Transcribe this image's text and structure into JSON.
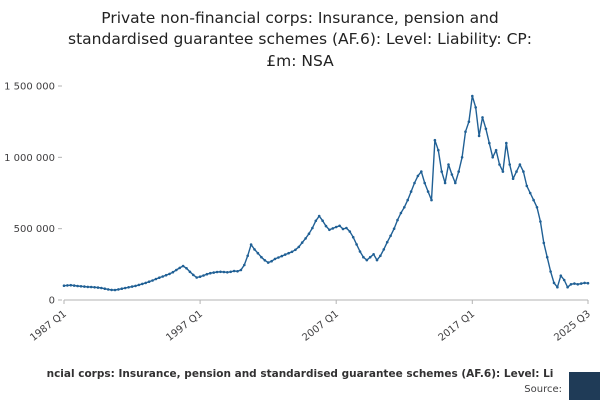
{
  "page": {
    "title_lines": [
      "Private non-financial corps: Insurance, pension and",
      "standardised guarantee schemes (AF.6): Level: Liability: CP:",
      "£m: NSA"
    ],
    "footer_caption": "ncial corps: Insurance, pension and standardised guarantee schemes (AF.6): Level: Li",
    "source_label": "Source:"
  },
  "colors": {
    "line": "#206095",
    "axis": "#b3b3b3",
    "tick_text": "#414042",
    "title_text": "#222222",
    "caption_text": "#323132",
    "brand_block": "#1f3b57"
  },
  "chart_data": {
    "type": "line",
    "title": "Private non-financial corps: Insurance, pension and standardised guarantee schemes (AF.6): Level: Liability: CP: £m: NSA",
    "unit": "£m",
    "frequency": "quarterly",
    "x_start": "1987 Q1",
    "x_end": "2025 Q3",
    "xlabel": "",
    "ylabel": "",
    "grid": false,
    "legend": "none",
    "markers": true,
    "ylim": [
      0,
      1500000
    ],
    "x_ticks": [
      {
        "index": 0,
        "label": "1987 Q1"
      },
      {
        "index": 40,
        "label": "1997 Q1"
      },
      {
        "index": 80,
        "label": "2007 Q1"
      },
      {
        "index": 120,
        "label": "2017 Q1"
      },
      {
        "index": 154,
        "label": "2025 Q3"
      }
    ],
    "y_ticks": [
      {
        "value": 0,
        "label": "0"
      },
      {
        "value": 500000,
        "label": "500 000"
      },
      {
        "value": 1000000,
        "label": "1 000 000"
      },
      {
        "value": 1500000,
        "label": "1 500 000"
      }
    ],
    "series": [
      {
        "name": "Liability: CP: £m: NSA",
        "values": [
          100000,
          102000,
          104000,
          101000,
          98000,
          96000,
          94000,
          92000,
          91000,
          89000,
          87000,
          84000,
          79000,
          74000,
          71000,
          70000,
          74000,
          79000,
          84000,
          89000,
          94000,
          99000,
          106000,
          113000,
          120000,
          128000,
          137000,
          147000,
          156000,
          165000,
          174000,
          183000,
          195000,
          210000,
          225000,
          238000,
          222000,
          198000,
          176000,
          158000,
          163000,
          172000,
          181000,
          188000,
          192000,
          196000,
          198000,
          196000,
          194000,
          198000,
          203000,
          201000,
          210000,
          245000,
          310000,
          388000,
          355000,
          328000,
          300000,
          278000,
          262000,
          272000,
          288000,
          298000,
          308000,
          318000,
          328000,
          338000,
          352000,
          372000,
          402000,
          432000,
          465000,
          505000,
          555000,
          588000,
          556000,
          518000,
          492000,
          502000,
          512000,
          520000,
          498000,
          505000,
          480000,
          440000,
          390000,
          340000,
          300000,
          280000,
          300000,
          320000,
          280000,
          310000,
          355000,
          405000,
          450000,
          500000,
          560000,
          610000,
          650000,
          700000,
          760000,
          820000,
          870000,
          900000,
          820000,
          760000,
          700000,
          1120000,
          1050000,
          900000,
          820000,
          950000,
          880000,
          820000,
          900000,
          1000000,
          1180000,
          1250000,
          1430000,
          1350000,
          1150000,
          1280000,
          1200000,
          1100000,
          1000000,
          1050000,
          950000,
          900000,
          1100000,
          950000,
          850000,
          900000,
          950000,
          900000,
          800000,
          750000,
          700000,
          650000,
          550000,
          400000,
          300000,
          200000,
          120000,
          90000,
          170000,
          140000,
          90000,
          110000,
          115000,
          110000,
          115000,
          120000,
          118000
        ]
      }
    ]
  }
}
